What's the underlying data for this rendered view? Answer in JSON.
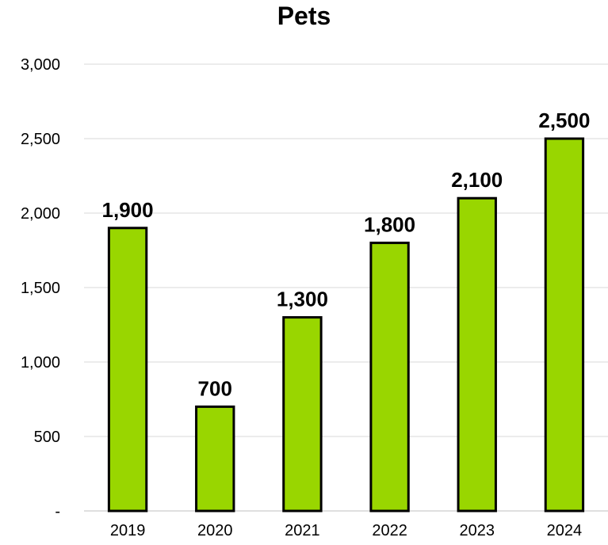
{
  "chart_data": {
    "type": "bar",
    "title": "Pets",
    "categories": [
      "2019",
      "2020",
      "2021",
      "2022",
      "2023",
      "2024"
    ],
    "values": [
      1900,
      700,
      1300,
      1800,
      2100,
      2500
    ],
    "data_labels": [
      "1,900",
      "700",
      "1,300",
      "1,800",
      "2,100",
      "2,500"
    ],
    "ylim": [
      0,
      3000
    ],
    "y_ticks": [
      0,
      500,
      1000,
      1500,
      2000,
      2500,
      3000
    ],
    "y_tick_labels": [
      "-",
      "500",
      "1,000",
      "1,500",
      "2,000",
      "2,500",
      "3,000"
    ],
    "xlabel": "",
    "ylabel": "",
    "grid": true,
    "legend": "none",
    "colors": {
      "bar_fill": "#99d600",
      "bar_outline": "#000000",
      "gridline": "#d9d9d9"
    }
  }
}
